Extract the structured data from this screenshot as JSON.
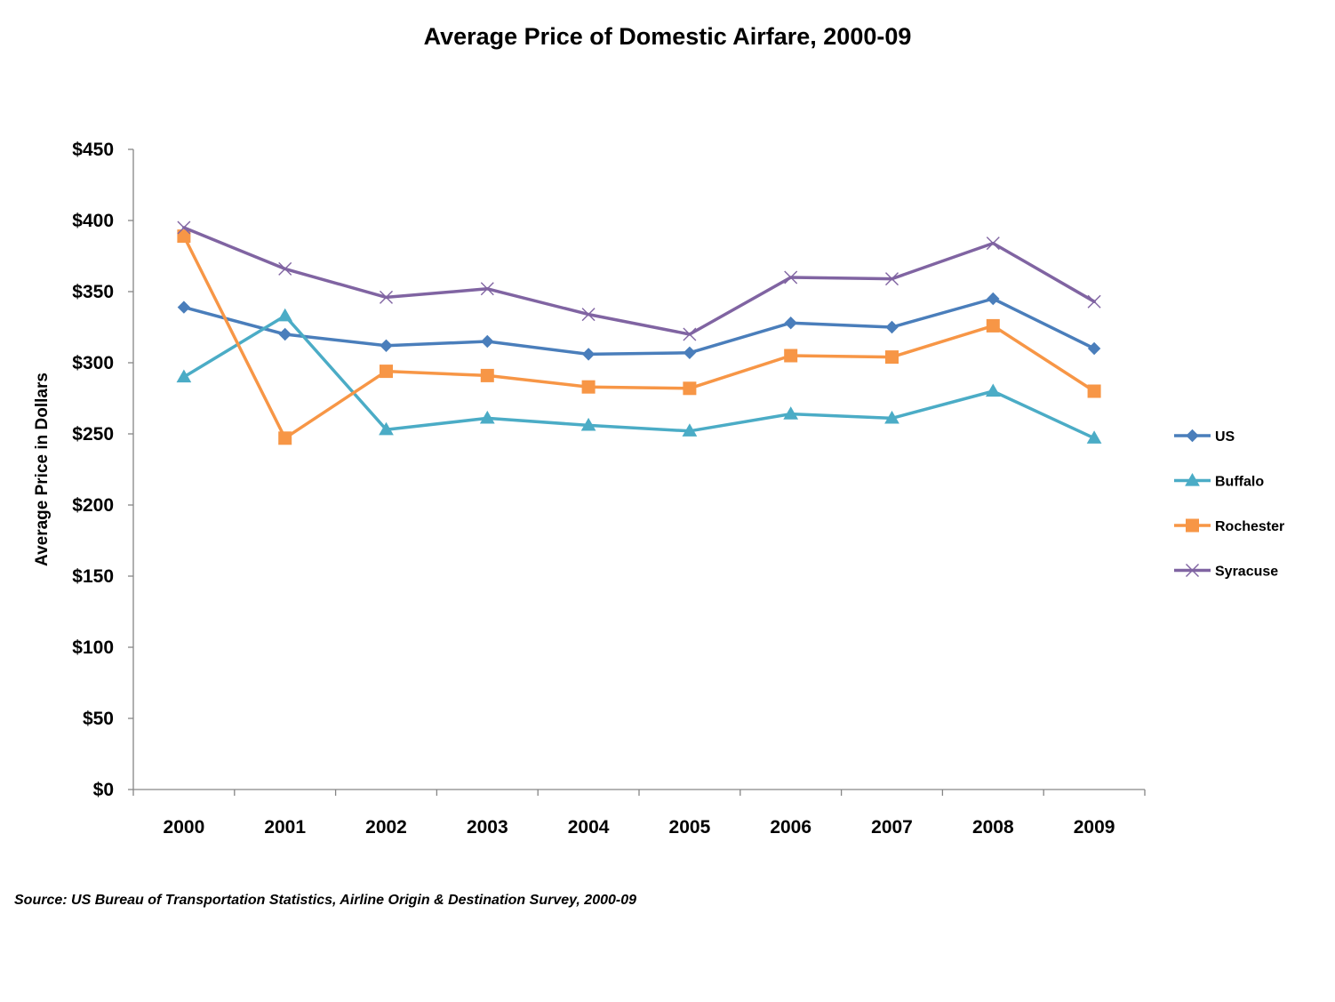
{
  "chart_data": {
    "type": "line",
    "title": "Average Price of Domestic Airfare, 2000-09",
    "xlabel": "",
    "ylabel": "Average Price in Dollars",
    "ylim": [
      0,
      450
    ],
    "ytick_step": 50,
    "ytick_labels": [
      "$0",
      "$50",
      "$100",
      "$150",
      "$200",
      "$250",
      "$300",
      "$350",
      "$400",
      "$450"
    ],
    "categories": [
      "2000",
      "2001",
      "2002",
      "2003",
      "2004",
      "2005",
      "2006",
      "2007",
      "2008",
      "2009"
    ],
    "grid": false,
    "legend_position": "right",
    "series": [
      {
        "name": "US",
        "color": "#4a7ebb",
        "marker": "diamond",
        "values": [
          339,
          320,
          312,
          315,
          306,
          307,
          328,
          325,
          345,
          310
        ]
      },
      {
        "name": "Buffalo",
        "color": "#4bacc6",
        "marker": "triangle",
        "values": [
          290,
          333,
          253,
          261,
          256,
          252,
          264,
          261,
          280,
          247
        ]
      },
      {
        "name": "Rochester",
        "color": "#f79646",
        "marker": "square",
        "values": [
          389,
          247,
          294,
          291,
          283,
          282,
          305,
          304,
          326,
          280
        ]
      },
      {
        "name": "Syracuse",
        "color": "#8064a2",
        "marker": "x",
        "values": [
          395,
          366,
          346,
          352,
          334,
          320,
          360,
          359,
          384,
          343
        ]
      }
    ],
    "source_note": "Source: US Bureau of Transportation Statistics, Airline Origin & Destination Survey, 2000-09"
  }
}
